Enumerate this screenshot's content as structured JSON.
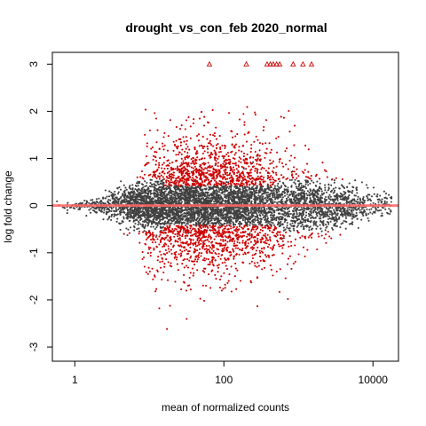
{
  "chart_data": {
    "type": "scatter",
    "title": "drought_vs_con_feb 2020_normal",
    "xlabel": "mean of normalized counts",
    "ylabel": "log fold change",
    "x_scale": "log10",
    "xlim": [
      0.5,
      22000
    ],
    "ylim": [
      -3.3,
      3.25
    ],
    "x_ticks": [
      1,
      100,
      10000
    ],
    "x_tick_labels": [
      "1",
      "100",
      "10000"
    ],
    "y_ticks": [
      -3,
      -2,
      -1,
      0,
      1,
      2,
      3
    ],
    "y_tick_labels": [
      "-3",
      "-2",
      "-1",
      "0",
      "1",
      "2",
      "3"
    ],
    "reference_line": {
      "y": 0
    },
    "colors": {
      "nonsignificant": "#404040",
      "significant": "#CC0000",
      "reference_line": "#FF6666"
    },
    "series": [
      {
        "name": "",
        "color": "#404040",
        "marker": "dot"
      },
      {
        "name": "",
        "color": "#CC0000",
        "marker": "dot"
      }
    ],
    "clipped_points": {
      "marker": "open-triangle",
      "y": 3,
      "x": [
        64,
        200,
        380,
        420,
        460,
        510,
        560,
        850,
        1150,
        1500
      ]
    }
  }
}
